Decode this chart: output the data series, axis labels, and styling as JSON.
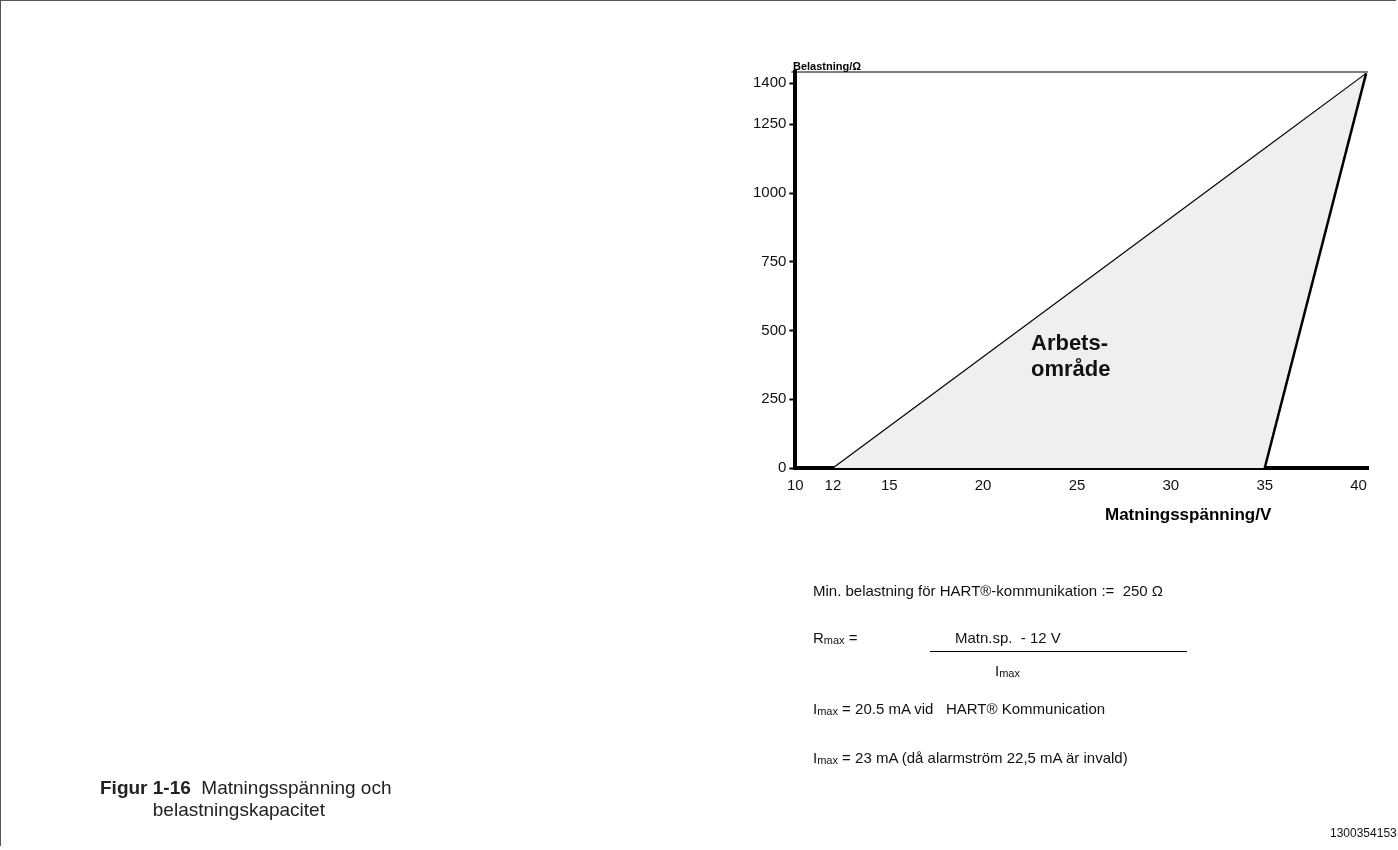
{
  "chart_data": {
    "type": "area",
    "title": "Figur 1-16  Matningsspänning och belastningskapacitet",
    "xlabel": "Matningsspänning/V",
    "ylabel": "Belastning/Ω",
    "series": [
      {
        "color": "#efefef",
        "x": [
          12,
          40.4,
          35
        ],
        "values": [
          0,
          1435,
          0
        ]
      }
    ],
    "xlim": [
      10,
      40.5
    ],
    "xticks": [
      10,
      12,
      15,
      20,
      25,
      30,
      35,
      40
    ],
    "ylim": [
      0,
      1440
    ],
    "yticks": [
      0,
      250,
      500,
      750,
      1000,
      1250,
      1400
    ],
    "grid": false,
    "legend": false,
    "marker": "none",
    "annotations": [
      "Arbets-\nområde",
      "Min. belastning för HART®-kommunikation :=  250 Ω",
      "R$_{max}$ =",
      "Matn.sp.  - 12 V",
      "I$_{max}$",
      "I$_{max}$ = 20.5 mA vid   HART® Kommunication",
      "I$_{max}$ = 23 mA (då alarmström 22,5 mA är invald)",
      "1300354153"
    ]
  }
}
